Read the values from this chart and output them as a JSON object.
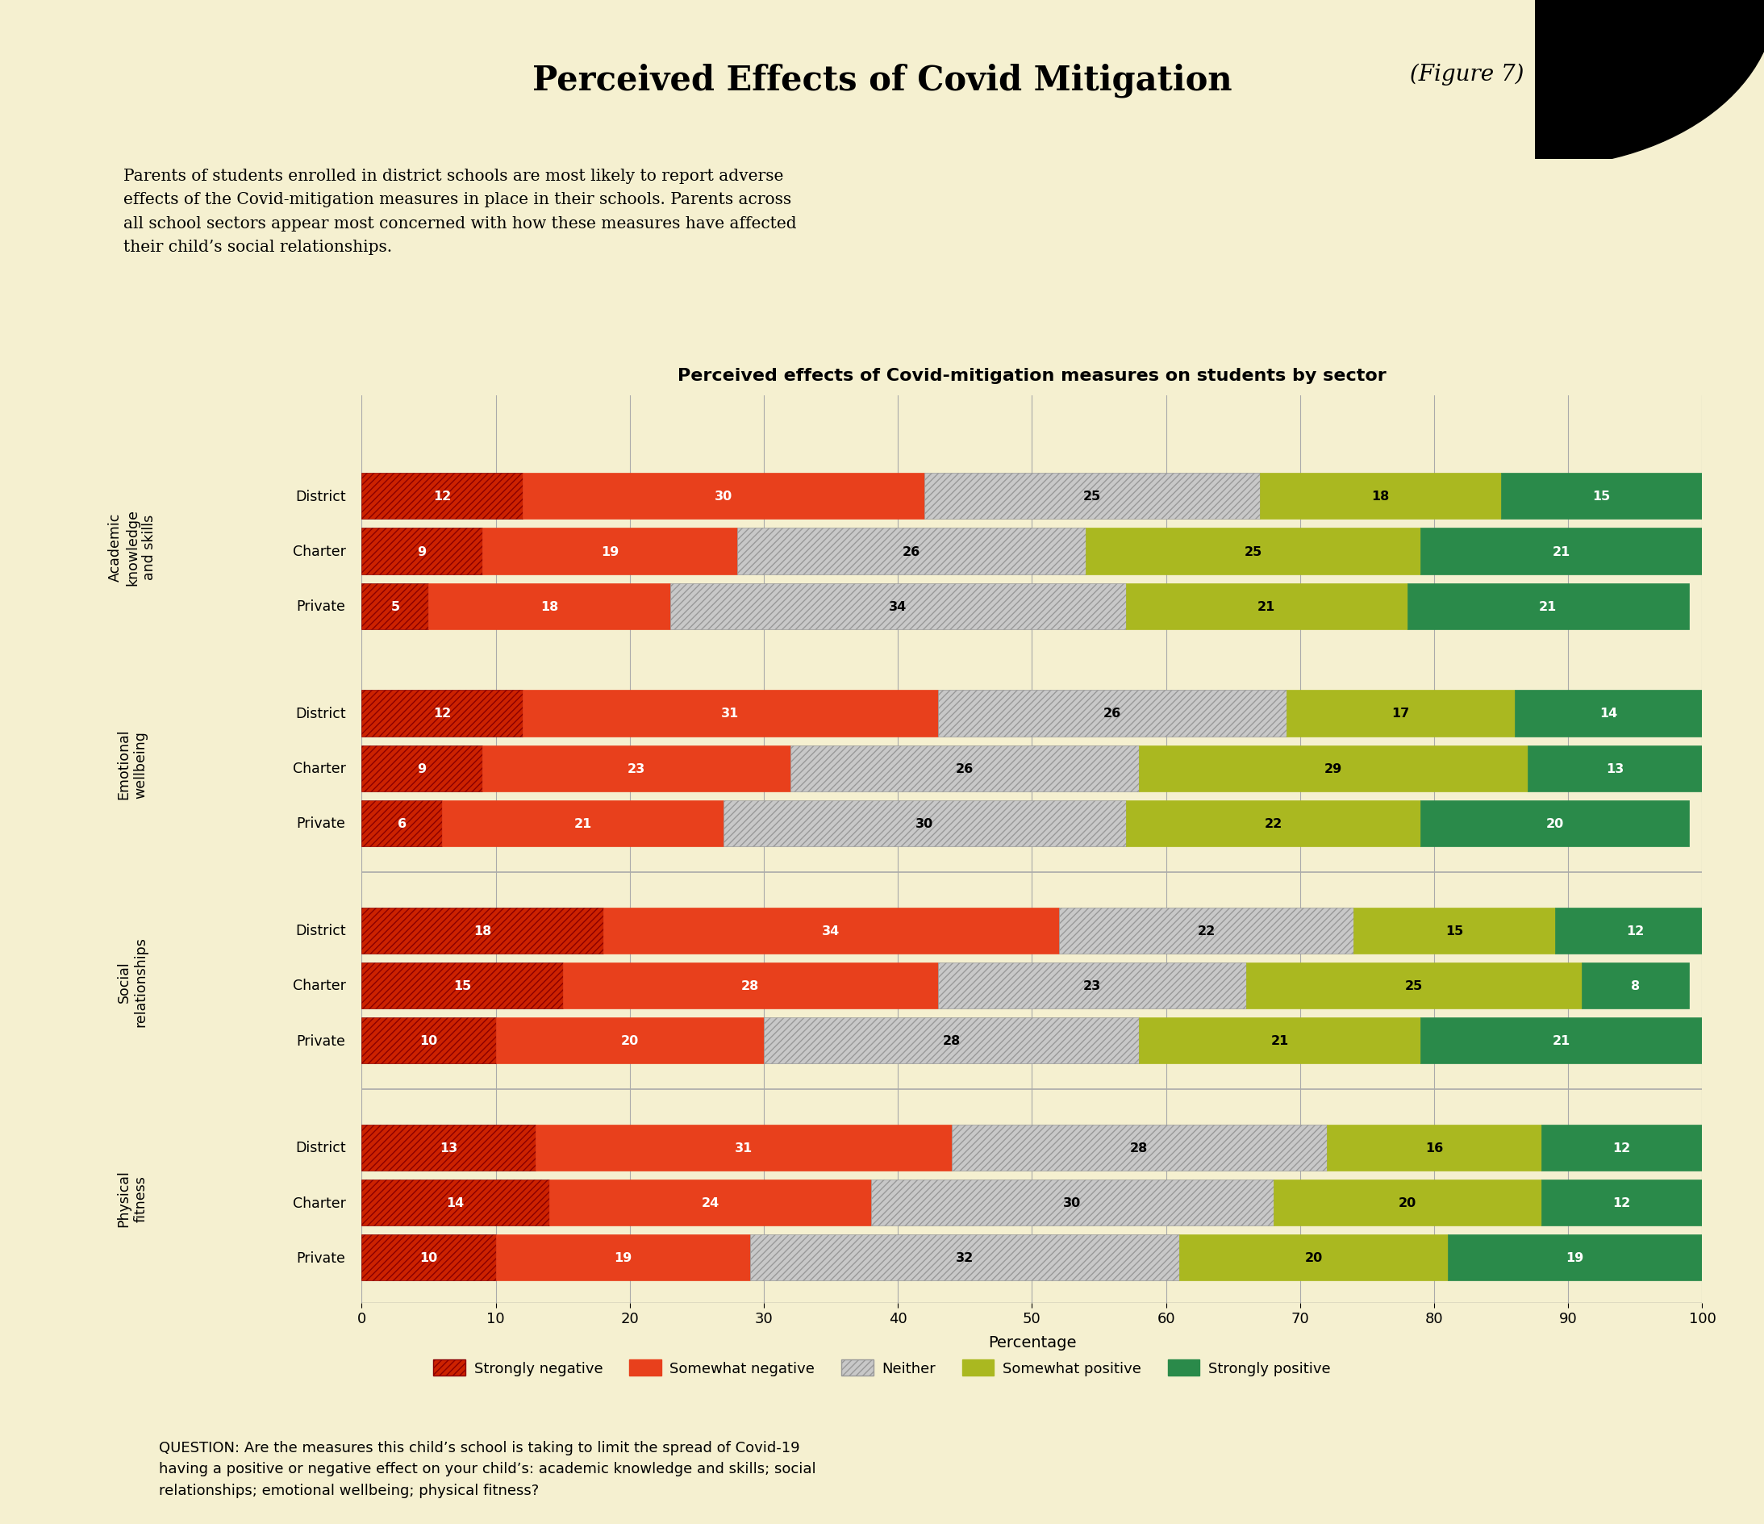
{
  "title_main": "Perceived Effects of Covid Mitigation",
  "title_figure": " (Figure 7)",
  "subtitle": "Parents of students enrolled in district schools are most likely to report adverse\neffects of the Covid-mitigation measures in place in their schools. Parents across\nall school sectors appear most concerned with how these measures have affected\ntheir child’s social relationships.",
  "chart_title": "Perceived effects of Covid-mitigation measures on students by sector",
  "question": "QUESTION: Are the measures this child’s school is taking to limit the spread of Covid-19\nhaving a positive or negative effect on your child’s: academic knowledge and skills; social\nrelationships; emotional wellbeing; physical fitness?",
  "categories": [
    "Academic\nknowledge\nand skills",
    "Emotional\nwellbeing",
    "Social\nrelationships",
    "Physical\nfitness"
  ],
  "sectors": [
    "District",
    "Charter",
    "Private"
  ],
  "data": {
    "Academic\nknowledge\nand skills": {
      "District": [
        12,
        30,
        25,
        18,
        15
      ],
      "Charter": [
        9,
        19,
        26,
        25,
        21
      ],
      "Private": [
        5,
        18,
        34,
        21,
        21
      ]
    },
    "Emotional\nwellbeing": {
      "District": [
        12,
        31,
        26,
        17,
        14
      ],
      "Charter": [
        9,
        23,
        26,
        29,
        13
      ],
      "Private": [
        6,
        21,
        30,
        22,
        20
      ]
    },
    "Social\nrelationships": {
      "District": [
        18,
        34,
        22,
        15,
        12
      ],
      "Charter": [
        15,
        28,
        23,
        25,
        8
      ],
      "Private": [
        10,
        20,
        28,
        21,
        21
      ]
    },
    "Physical\nfitness": {
      "District": [
        13,
        31,
        28,
        16,
        12
      ],
      "Charter": [
        14,
        24,
        30,
        20,
        12
      ],
      "Private": [
        10,
        19,
        32,
        20,
        19
      ]
    }
  },
  "colors": {
    "strongly_negative": "#cc2200",
    "somewhat_negative": "#e8401c",
    "neither": "#c8c8c8",
    "somewhat_positive": "#aab820",
    "strongly_positive": "#2a8a4a"
  },
  "bg_top": "#d8ddc0",
  "bg_chart": "#f5f0d0",
  "xlabel": "Percentage",
  "legend_labels": [
    "Strongly negative",
    "Somewhat negative",
    "Neither",
    "Somewhat positive",
    "Strongly positive"
  ]
}
